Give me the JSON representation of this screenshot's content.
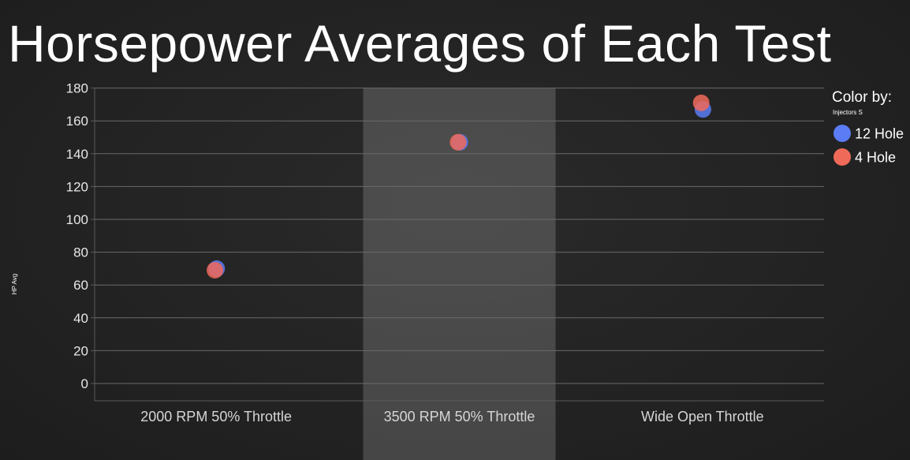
{
  "title": "Horsepower Averages of Each Test",
  "legend": {
    "title": "Color by:",
    "subtitle": "Injectors S"
  },
  "chart_data": {
    "type": "scatter",
    "title": "Horsepower Averages of Each Test",
    "xlabel": "",
    "ylabel": "HP Avg",
    "categories": [
      "2000 RPM 50% Throttle",
      "3500 RPM 50% Throttle",
      "Wide Open Throttle"
    ],
    "highlighted_category": "3500 RPM 50% Throttle",
    "ylim": [
      -10,
      180
    ],
    "yticks": [
      0,
      20,
      40,
      60,
      80,
      100,
      120,
      140,
      160,
      180
    ],
    "grid": true,
    "legend_position": "right",
    "series": [
      {
        "name": "12 Hole",
        "color": "#5b7cf4",
        "values": [
          70,
          147,
          167
        ]
      },
      {
        "name": "4 Hole",
        "color": "#f06a5a",
        "values": [
          69,
          147,
          171
        ]
      }
    ]
  }
}
